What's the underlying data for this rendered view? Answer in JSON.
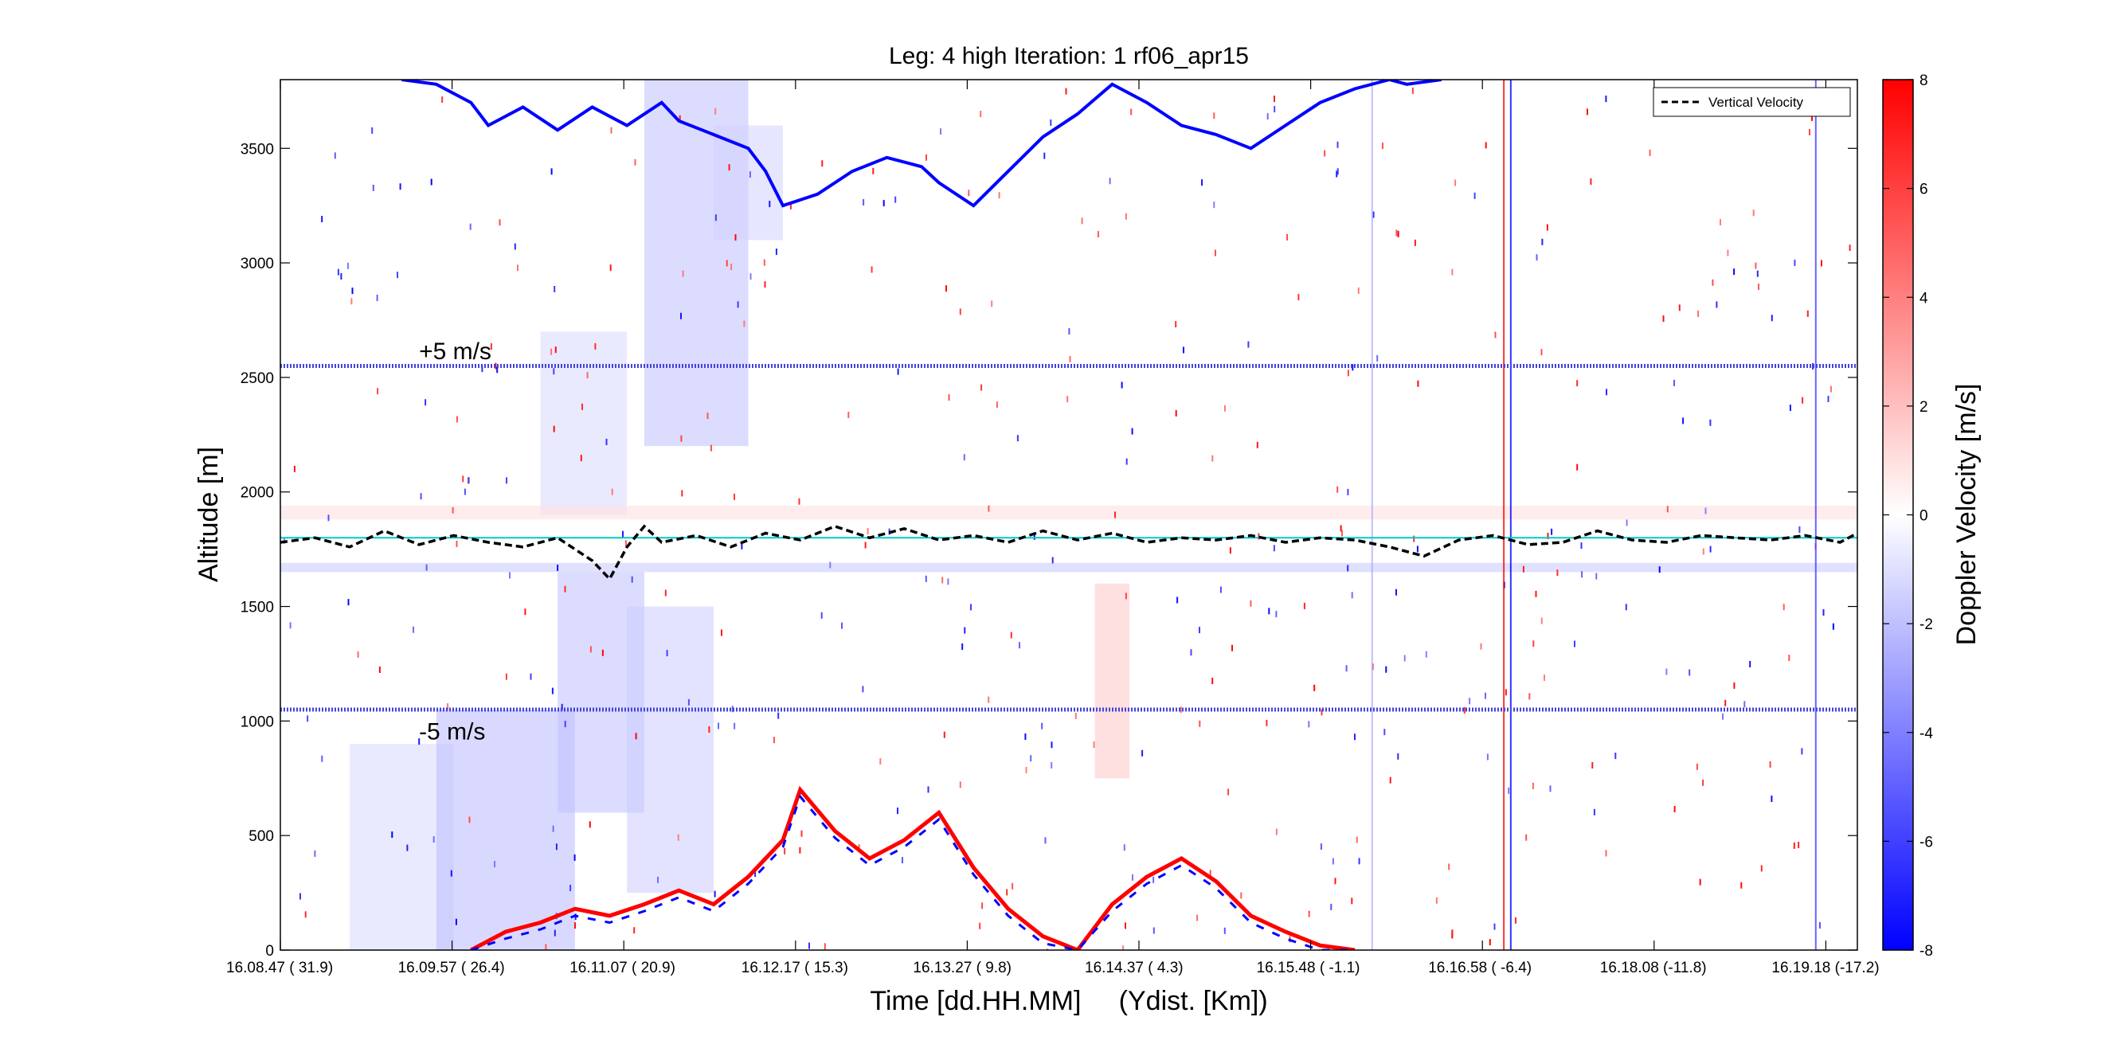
{
  "chart_data": {
    "type": "heatmap",
    "title": "Leg: 4 high Iteration: 1  rf06_apr15",
    "xlabel": "Time [dd.HH.MM]     (Ydist. [Km])",
    "ylabel": "Altitude [m]",
    "colorbar_label": "Doppler Velocity [m/s]",
    "x_ticks": [
      {
        "time": "16.08.47",
        "ydist": "( 31.9)"
      },
      {
        "time": "16.09.57",
        "ydist": "( 26.4)"
      },
      {
        "time": "16.11.07",
        "ydist": "( 20.9)"
      },
      {
        "time": "16.12.17",
        "ydist": "( 15.3)"
      },
      {
        "time": "16.13.27",
        "ydist": "(  9.8)"
      },
      {
        "time": "16.14.37",
        "ydist": "(  4.3)"
      },
      {
        "time": "16.15.48",
        "ydist": "( -1.1)"
      },
      {
        "time": "16.16.58",
        "ydist": "( -6.4)"
      },
      {
        "time": "16.18.08",
        "ydist": "(-11.8)"
      },
      {
        "time": "16.19.18",
        "ydist": "(-17.2)"
      }
    ],
    "xlim": [
      0,
      9.1
    ],
    "ylim": [
      0,
      3800
    ],
    "y_ticks": [
      0,
      500,
      1000,
      1500,
      2000,
      2500,
      3000,
      3500
    ],
    "colorbar_ticks": [
      -8,
      -6,
      -4,
      -2,
      0,
      2,
      4,
      6,
      8
    ],
    "clim": [
      -8,
      8
    ],
    "colormap": {
      "low": "#0000ff",
      "mid": "#ffffff",
      "high": "#ff0000"
    },
    "annotations": [
      {
        "text": "+5 m/s",
        "x": 0.8,
        "y": 2580
      },
      {
        "text": "-5 m/s",
        "x": 0.8,
        "y": 920
      }
    ],
    "reference_lines": [
      {
        "name": "plus5_line",
        "y": 2550,
        "color": "#4444dd"
      },
      {
        "name": "minus5_line",
        "y": 1050,
        "color": "#4444dd"
      },
      {
        "name": "flight_level",
        "y": 1800,
        "color": "#00cccc"
      }
    ],
    "legend": {
      "position": "top-right",
      "entries": [
        {
          "label": "Vertical Velocity",
          "style": "dashed",
          "color": "#000000"
        }
      ]
    },
    "vertical_velocity": {
      "x": [
        0,
        0.2,
        0.4,
        0.6,
        0.8,
        1.0,
        1.2,
        1.4,
        1.6,
        1.8,
        1.9,
        2.0,
        2.1,
        2.2,
        2.4,
        2.6,
        2.8,
        3.0,
        3.2,
        3.4,
        3.6,
        3.8,
        4.0,
        4.2,
        4.4,
        4.6,
        4.8,
        5.0,
        5.2,
        5.4,
        5.6,
        5.8,
        6.0,
        6.2,
        6.4,
        6.6,
        6.8,
        7.0,
        7.2,
        7.4,
        7.6,
        7.8,
        8.0,
        8.2,
        8.4,
        8.6,
        8.8,
        9.0,
        9.1
      ],
      "y": [
        1780,
        1800,
        1760,
        1830,
        1770,
        1810,
        1780,
        1760,
        1800,
        1700,
        1620,
        1760,
        1850,
        1780,
        1810,
        1760,
        1820,
        1790,
        1850,
        1800,
        1840,
        1790,
        1810,
        1780,
        1830,
        1790,
        1820,
        1780,
        1800,
        1790,
        1810,
        1780,
        1800,
        1790,
        1760,
        1720,
        1790,
        1810,
        1770,
        1780,
        1830,
        1790,
        1780,
        1810,
        1800,
        1790,
        1810,
        1780,
        1820
      ]
    },
    "cloud_top_blue": {
      "x": [
        0.7,
        0.9,
        1.1,
        1.2,
        1.4,
        1.6,
        1.8,
        2.0,
        2.2,
        2.3,
        2.5,
        2.7,
        2.8,
        2.9,
        3.1,
        3.3,
        3.5,
        3.7,
        3.8,
        4.0,
        4.2,
        4.4,
        4.6,
        4.8,
        5.0,
        5.2,
        5.4,
        5.6,
        5.8,
        6.0,
        6.2,
        6.4,
        6.5,
        6.7
      ],
      "y": [
        3800,
        3780,
        3700,
        3600,
        3680,
        3580,
        3680,
        3600,
        3700,
        3620,
        3560,
        3500,
        3400,
        3250,
        3300,
        3400,
        3460,
        3420,
        3350,
        3250,
        3400,
        3550,
        3650,
        3780,
        3700,
        3600,
        3560,
        3500,
        3600,
        3700,
        3760,
        3800,
        3780,
        3800
      ]
    },
    "surface_echo": {
      "x": [
        1.1,
        1.3,
        1.5,
        1.7,
        1.9,
        2.1,
        2.3,
        2.5,
        2.7,
        2.9,
        3.0,
        3.2,
        3.4,
        3.6,
        3.8,
        4.0,
        4.2,
        4.4,
        4.6,
        4.8,
        5.0,
        5.2,
        5.4,
        5.6,
        5.8,
        6.0,
        6.2
      ],
      "y": [
        0,
        80,
        120,
        180,
        150,
        200,
        260,
        200,
        320,
        480,
        700,
        520,
        400,
        480,
        600,
        360,
        180,
        60,
        0,
        200,
        320,
        400,
        300,
        150,
        80,
        20,
        0
      ]
    },
    "precip_shafts": [
      {
        "x0": 0.4,
        "x1": 1.0,
        "y0": 0,
        "y1": 900,
        "v": -1.2
      },
      {
        "x0": 0.9,
        "x1": 1.7,
        "y0": 0,
        "y1": 1050,
        "v": -2.2
      },
      {
        "x0": 1.6,
        "x1": 2.1,
        "y0": 600,
        "y1": 1650,
        "v": -2.0
      },
      {
        "x0": 2.0,
        "x1": 2.5,
        "y0": 250,
        "y1": 1500,
        "v": -1.6
      },
      {
        "x0": 1.5,
        "x1": 2.0,
        "y0": 1900,
        "y1": 2700,
        "v": -1.2
      },
      {
        "x0": 2.1,
        "x1": 2.7,
        "y0": 2200,
        "y1": 3800,
        "v": -2.0
      },
      {
        "x0": 2.5,
        "x1": 2.9,
        "y0": 3100,
        "y1": 3600,
        "v": -1.4
      },
      {
        "x0": 4.7,
        "x1": 4.9,
        "y0": 750,
        "y1": 1600,
        "v": 1.8
      }
    ],
    "contamination_bands": [
      {
        "y0": 1880,
        "y1": 1940,
        "v": 1.0
      },
      {
        "y0": 1650,
        "y1": 1690,
        "v": -1.6
      }
    ],
    "vertical_artifacts": [
      {
        "x": 6.3,
        "v": -2.5
      },
      {
        "x": 7.06,
        "v": 8
      },
      {
        "x": 7.1,
        "v": -8
      },
      {
        "x": 8.86,
        "v": -6
      }
    ]
  }
}
